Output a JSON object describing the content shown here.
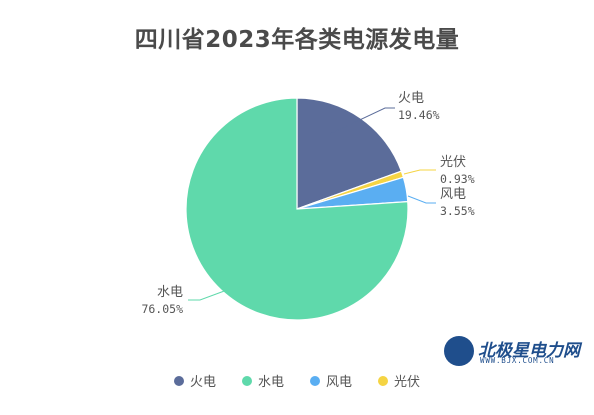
{
  "chart_data": {
    "type": "pie",
    "title": "四川省2023年各类电源发电量",
    "slices": [
      {
        "label": "火电",
        "value": 19.46,
        "display": "19.46%",
        "color": "#5b6c9a"
      },
      {
        "label": "光伏",
        "value": 0.93,
        "display": "0.93%",
        "color": "#f5d443"
      },
      {
        "label": "风电",
        "value": 3.55,
        "display": "3.55%",
        "color": "#5aaef2"
      },
      {
        "label": "水电",
        "value": 76.05,
        "display": "76.05%",
        "color": "#5fd9ab"
      }
    ],
    "legend": {
      "placement": "bottom",
      "items": [
        {
          "label": "火电",
          "color": "#5b6c9a"
        },
        {
          "label": "水电",
          "color": "#5fd9ab"
        },
        {
          "label": "风电",
          "color": "#5aaef2"
        },
        {
          "label": "光伏",
          "color": "#f5d443"
        }
      ]
    }
  },
  "watermark": {
    "name": "北极星电力网",
    "url": "WWW.BJX.COM.CN"
  }
}
